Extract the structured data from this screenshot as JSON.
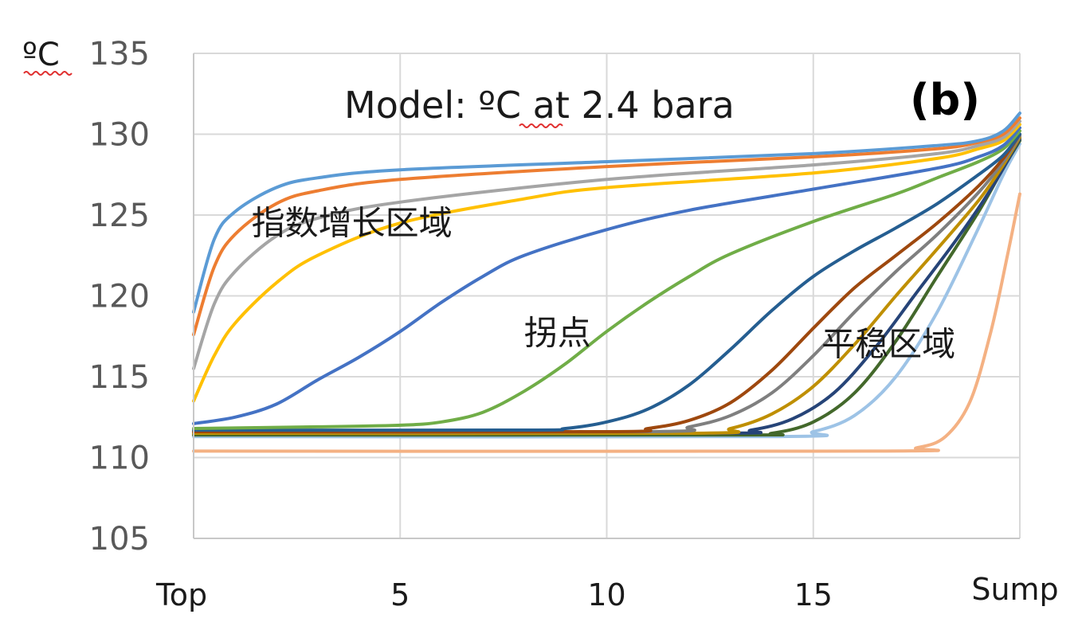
{
  "chart_data": {
    "type": "line",
    "title": "Model: ºC at 2.4 bara",
    "panel_label": "(b)",
    "ylabel": "ºC",
    "xlabel": "",
    "ylim": [
      105,
      135
    ],
    "yticks": [
      105,
      110,
      115,
      120,
      125,
      130,
      135
    ],
    "xlim": [
      0,
      20
    ],
    "xticks": [
      {
        "value": 0,
        "label": "Top"
      },
      {
        "value": 5,
        "label": "5"
      },
      {
        "value": 10,
        "label": "10"
      },
      {
        "value": 15,
        "label": "15"
      },
      {
        "value": 20,
        "label": "Sump"
      }
    ],
    "grid": true,
    "legend": "none",
    "annotations": [
      {
        "text": "指数增长区域",
        "x": 1.4,
        "y": 123.8
      },
      {
        "text": "拐点",
        "x": 8.0,
        "y": 117.0
      },
      {
        "text": "平稳区域",
        "x": 15.2,
        "y": 116.3
      }
    ],
    "series": [
      {
        "color": "#5B9BD5",
        "points": [
          [
            0,
            119
          ],
          [
            0.5,
            123.5
          ],
          [
            1,
            125.2
          ],
          [
            2,
            126.7
          ],
          [
            3,
            127.3
          ],
          [
            5,
            127.8
          ],
          [
            10,
            128.3
          ],
          [
            15,
            128.8
          ],
          [
            18,
            129.3
          ],
          [
            19,
            129.6
          ],
          [
            19.6,
            130.2
          ],
          [
            20,
            131.3
          ]
        ]
      },
      {
        "color": "#ED7D31",
        "points": [
          [
            0,
            117.6
          ],
          [
            0.5,
            121.8
          ],
          [
            1,
            123.8
          ],
          [
            2,
            125.7
          ],
          [
            3,
            126.5
          ],
          [
            5,
            127.2
          ],
          [
            10,
            128.0
          ],
          [
            15,
            128.6
          ],
          [
            18,
            129.1
          ],
          [
            19,
            129.5
          ],
          [
            19.6,
            130.0
          ],
          [
            20,
            131.0
          ]
        ]
      },
      {
        "color": "#A5A5A5",
        "points": [
          [
            0,
            115.5
          ],
          [
            0.5,
            119.5
          ],
          [
            1,
            121.5
          ],
          [
            2,
            123.7
          ],
          [
            3,
            124.8
          ],
          [
            5,
            125.8
          ],
          [
            10,
            127.2
          ],
          [
            15,
            128.1
          ],
          [
            18,
            128.8
          ],
          [
            19,
            129.3
          ],
          [
            19.6,
            129.8
          ],
          [
            20,
            130.8
          ]
        ]
      },
      {
        "color": "#FFC000",
        "points": [
          [
            0,
            113.5
          ],
          [
            0.5,
            116.3
          ],
          [
            1,
            118.3
          ],
          [
            2,
            120.8
          ],
          [
            3,
            122.5
          ],
          [
            5,
            124.5
          ],
          [
            8,
            126.0
          ],
          [
            10,
            126.7
          ],
          [
            15,
            127.6
          ],
          [
            18,
            128.5
          ],
          [
            19,
            129.1
          ],
          [
            19.6,
            129.6
          ],
          [
            20,
            130.6
          ]
        ]
      },
      {
        "color": "#4472C4",
        "points": [
          [
            0,
            112.1
          ],
          [
            1,
            112.5
          ],
          [
            2,
            113.3
          ],
          [
            3,
            114.8
          ],
          [
            4,
            116.2
          ],
          [
            5,
            117.8
          ],
          [
            6,
            119.6
          ],
          [
            7,
            121.2
          ],
          [
            8,
            122.5
          ],
          [
            10,
            124.1
          ],
          [
            12,
            125.3
          ],
          [
            15,
            126.6
          ],
          [
            18,
            127.9
          ],
          [
            19,
            128.6
          ],
          [
            19.6,
            129.3
          ],
          [
            20,
            130.4
          ]
        ]
      },
      {
        "color": "#70AD47",
        "points": [
          [
            0,
            111.8
          ],
          [
            3,
            111.9
          ],
          [
            5,
            112.0
          ],
          [
            6,
            112.2
          ],
          [
            7,
            112.8
          ],
          [
            8,
            114.1
          ],
          [
            9,
            115.8
          ],
          [
            10,
            117.8
          ],
          [
            11,
            119.6
          ],
          [
            12,
            121.2
          ],
          [
            13,
            122.6
          ],
          [
            15,
            124.6
          ],
          [
            17,
            126.3
          ],
          [
            18,
            127.3
          ],
          [
            19,
            128.3
          ],
          [
            19.6,
            129.1
          ],
          [
            20,
            130.2
          ]
        ]
      },
      {
        "color": "#255E91",
        "points": [
          [
            0,
            111.7
          ],
          [
            8,
            111.7
          ],
          [
            9,
            111.8
          ],
          [
            10,
            112.2
          ],
          [
            11,
            113.0
          ],
          [
            12,
            114.5
          ],
          [
            13,
            116.7
          ],
          [
            14,
            119.1
          ],
          [
            15,
            121.2
          ],
          [
            16,
            122.8
          ],
          [
            17,
            124.2
          ],
          [
            18,
            125.7
          ],
          [
            19,
            127.5
          ],
          [
            19.6,
            128.7
          ],
          [
            20,
            130.0
          ]
        ]
      },
      {
        "color": "#9E480E",
        "points": [
          [
            0,
            111.6
          ],
          [
            10,
            111.6
          ],
          [
            11,
            111.8
          ],
          [
            12,
            112.3
          ],
          [
            13,
            113.4
          ],
          [
            14,
            115.4
          ],
          [
            15,
            118.0
          ],
          [
            16,
            120.5
          ],
          [
            17,
            122.5
          ],
          [
            18,
            124.5
          ],
          [
            19,
            126.8
          ],
          [
            19.6,
            128.5
          ],
          [
            20,
            130.0
          ]
        ]
      },
      {
        "color": "#7F7F7F",
        "points": [
          [
            0,
            111.6
          ],
          [
            11,
            111.6
          ],
          [
            12,
            111.9
          ],
          [
            13,
            112.6
          ],
          [
            14,
            114.0
          ],
          [
            15,
            116.3
          ],
          [
            16,
            119.0
          ],
          [
            17,
            121.5
          ],
          [
            18,
            123.8
          ],
          [
            19,
            126.4
          ],
          [
            19.6,
            128.3
          ],
          [
            20,
            129.9
          ]
        ]
      },
      {
        "color": "#BF8F00",
        "points": [
          [
            0,
            111.5
          ],
          [
            12,
            111.5
          ],
          [
            13,
            111.8
          ],
          [
            14,
            112.7
          ],
          [
            15,
            114.4
          ],
          [
            16,
            117.0
          ],
          [
            17,
            120.0
          ],
          [
            18,
            122.9
          ],
          [
            19,
            125.9
          ],
          [
            19.6,
            128.1
          ],
          [
            20,
            129.8
          ]
        ]
      },
      {
        "color": "#264478",
        "points": [
          [
            0,
            111.5
          ],
          [
            12.5,
            111.5
          ],
          [
            13.5,
            111.7
          ],
          [
            14.5,
            112.4
          ],
          [
            15.5,
            114.0
          ],
          [
            16.5,
            116.8
          ],
          [
            17.5,
            120.2
          ],
          [
            18.5,
            123.6
          ],
          [
            19.3,
            126.6
          ],
          [
            19.8,
            128.8
          ],
          [
            20,
            129.7
          ]
        ]
      },
      {
        "color": "#43682B",
        "points": [
          [
            0,
            111.4
          ],
          [
            13,
            111.4
          ],
          [
            14,
            111.5
          ],
          [
            15,
            112.2
          ],
          [
            16,
            114.0
          ],
          [
            17,
            117.2
          ],
          [
            18,
            121.2
          ],
          [
            19,
            125.2
          ],
          [
            19.6,
            127.9
          ],
          [
            20,
            129.6
          ]
        ]
      },
      {
        "color": "#9DC3E6",
        "points": [
          [
            0,
            111.3
          ],
          [
            14,
            111.3
          ],
          [
            15,
            111.6
          ],
          [
            16,
            112.6
          ],
          [
            17,
            115.0
          ],
          [
            18,
            119.0
          ],
          [
            19,
            124.2
          ],
          [
            19.6,
            127.5
          ],
          [
            20,
            129.4
          ]
        ]
      },
      {
        "color": "#F4B183",
        "points": [
          [
            0,
            110.4
          ],
          [
            16.5,
            110.4
          ],
          [
            17.5,
            110.6
          ],
          [
            18.2,
            111.3
          ],
          [
            18.8,
            113.5
          ],
          [
            19.3,
            117.8
          ],
          [
            19.7,
            122.5
          ],
          [
            20,
            126.3
          ]
        ]
      }
    ]
  }
}
